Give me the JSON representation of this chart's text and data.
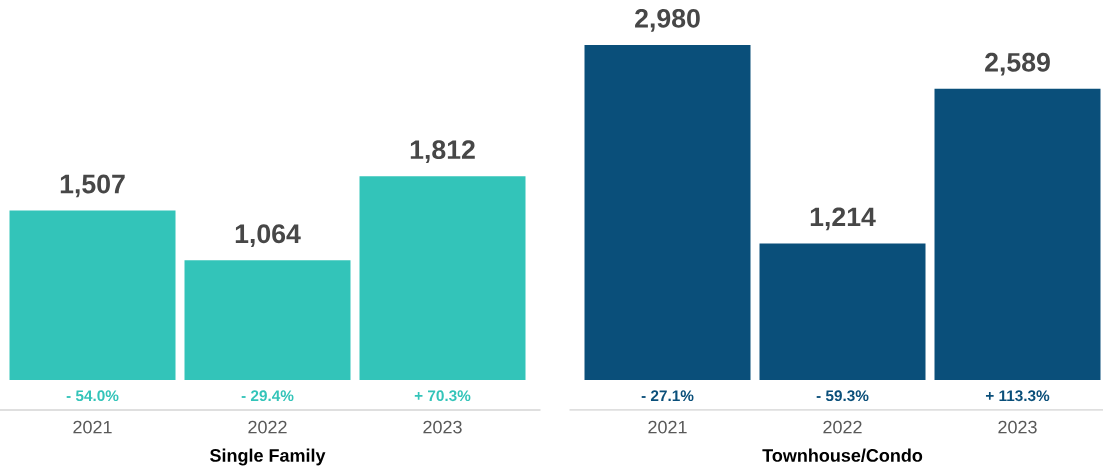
{
  "chart_data": [
    {
      "type": "bar",
      "xlabel": "Single Family",
      "categories": [
        "2021",
        "2022",
        "2023"
      ],
      "values": [
        1507,
        1064,
        1812
      ],
      "color": "#33c4b9",
      "value_labels": [
        "1,507",
        "1,064",
        "1,812"
      ],
      "annotations": [
        "- 54.0%",
        "- 29.4%",
        "+ 70.3%"
      ]
    },
    {
      "type": "bar",
      "xlabel": "Townhouse/Condo",
      "categories": [
        "2021",
        "2022",
        "2023"
      ],
      "values": [
        2980,
        1214,
        2589
      ],
      "color": "#0a4f7a",
      "value_labels": [
        "2,980",
        "1,214",
        "2,589"
      ],
      "annotations": [
        "- 27.1%",
        "- 59.3%",
        "+ 113.3%"
      ]
    }
  ]
}
